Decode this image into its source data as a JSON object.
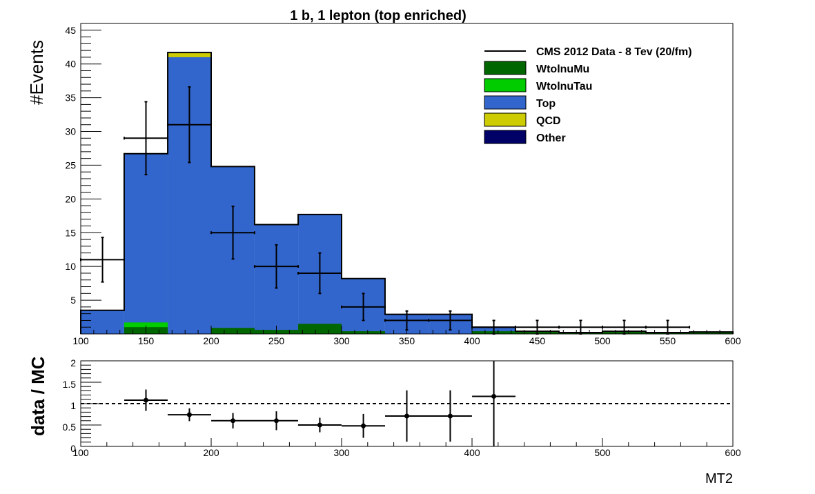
{
  "chart_data": [
    {
      "type": "bar",
      "stacked": true,
      "title": "1 b, 1 lepton (top enriched)",
      "ylabel": "#Events",
      "xlim": [
        100,
        600
      ],
      "ylim": [
        0,
        46
      ],
      "x_ticks": [
        100,
        150,
        200,
        250,
        300,
        350,
        400,
        450,
        500,
        550,
        600
      ],
      "y_ticks": [
        5,
        10,
        15,
        20,
        25,
        30,
        35,
        40,
        45
      ],
      "bin_edges": [
        100,
        133.3,
        166.7,
        200,
        233.3,
        266.7,
        300,
        333.3,
        366.7,
        400,
        433.3,
        466.7,
        500,
        533.3,
        566.7,
        600
      ],
      "legend_position": "top-right",
      "series": [
        {
          "name": "WtolnuMu",
          "color": "#006600",
          "values": [
            0,
            1.0,
            0,
            0.9,
            0.6,
            1.5,
            0.4,
            0,
            0,
            0.4,
            0.4,
            0.2,
            0.4,
            0.2,
            0.3
          ]
        },
        {
          "name": "WtolnuTau",
          "color": "#00cc00",
          "values": [
            0,
            0.7,
            0,
            0,
            0,
            0,
            0,
            0,
            0,
            0,
            0,
            0,
            0,
            0,
            0
          ]
        },
        {
          "name": "Top",
          "color": "#3366cc",
          "values": [
            3.5,
            25.0,
            41.0,
            23.9,
            15.6,
            16.2,
            7.8,
            2.9,
            2.9,
            0.6,
            0,
            0,
            0,
            0,
            0
          ]
        },
        {
          "name": "QCD",
          "color": "#cccc00",
          "values": [
            0,
            0,
            0.7,
            0,
            0,
            0,
            0,
            0,
            0,
            0,
            0,
            0,
            0,
            0,
            0
          ]
        },
        {
          "name": "Other",
          "color": "#000066",
          "values": [
            0,
            0,
            0,
            0,
            0,
            0,
            0,
            0,
            0,
            0,
            0,
            0,
            0,
            0,
            0
          ]
        }
      ],
      "data_series": {
        "name": "CMS 2012 Data - 8 Tev (20/fm)",
        "color": "#000000",
        "x": [
          116.7,
          150,
          183.3,
          216.7,
          250,
          283.3,
          316.7,
          350,
          383.3,
          416.7,
          450,
          483.3,
          516.7,
          550
        ],
        "y": [
          11,
          29,
          31,
          15,
          10,
          9,
          4,
          2,
          2,
          1,
          1,
          1,
          1,
          1
        ],
        "err": [
          3.3,
          5.4,
          5.6,
          3.9,
          3.2,
          3.0,
          2.0,
          1.4,
          1.4,
          1.0,
          1.0,
          1.0,
          1.0,
          1.0
        ]
      }
    },
    {
      "type": "scatter",
      "ylabel": "data / MC",
      "xlabel": "MT2",
      "xlim": [
        100,
        600
      ],
      "ylim": [
        0,
        2
      ],
      "x_ticks": [
        100,
        200,
        300,
        400,
        500,
        600
      ],
      "y_ticks": [
        "0",
        "0.5",
        "1",
        "1.5",
        "2"
      ],
      "reference_line": 1,
      "points": {
        "x": [
          150,
          183.3,
          216.7,
          250,
          283.3,
          316.7,
          350,
          383.3,
          416.7
        ],
        "y": [
          1.08,
          0.74,
          0.6,
          0.6,
          0.5,
          0.48,
          0.71,
          0.71,
          1.17
        ],
        "err": [
          0.25,
          0.15,
          0.18,
          0.22,
          0.17,
          0.28,
          0.6,
          0.6,
          1.2
        ]
      }
    }
  ]
}
